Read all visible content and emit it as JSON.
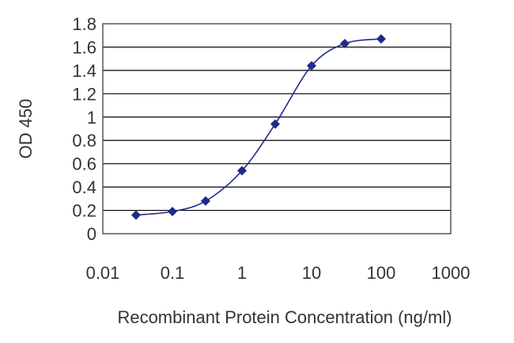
{
  "chart_data": {
    "type": "scatter",
    "xlabel": "Recombinant Protein Concentration (ng/ml)",
    "ylabel": "OD 450",
    "xscale": "log",
    "xlim": [
      0.01,
      1000
    ],
    "ylim": [
      0,
      1.8
    ],
    "xticks": [
      0.01,
      0.1,
      1,
      10,
      100,
      1000
    ],
    "xtick_labels": [
      "0.01",
      "0.1",
      "1",
      "10",
      "100",
      "1000"
    ],
    "yticks": [
      0,
      0.2,
      0.4,
      0.6,
      0.8,
      1,
      1.2,
      1.4,
      1.6,
      1.8
    ],
    "ytick_labels": [
      "0",
      "0.2",
      "0.4",
      "0.6",
      "0.8",
      "1",
      "1.2",
      "1.4",
      "1.6",
      "1.8"
    ],
    "grid": "horizontal",
    "legend": "none",
    "series": [
      {
        "x": [
          0.03,
          0.1,
          0.3,
          1,
          3,
          10,
          30,
          100
        ],
        "y": [
          0.16,
          0.19,
          0.28,
          0.54,
          0.94,
          1.44,
          1.63,
          1.67
        ],
        "fit_curve": true,
        "color": "#1f2a8a",
        "marker": "diamond"
      }
    ]
  }
}
